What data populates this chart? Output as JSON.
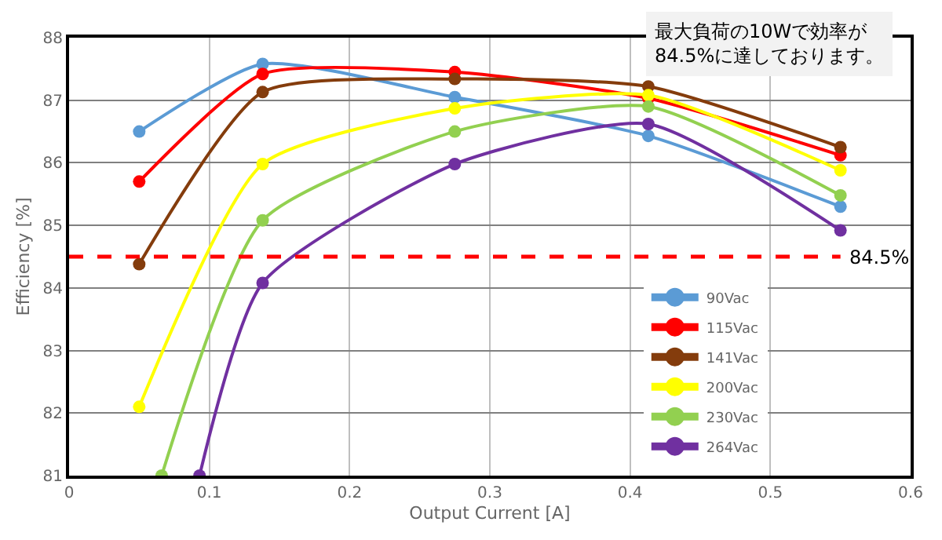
{
  "chart_data": {
    "type": "line",
    "xlabel": "Output Current [A]",
    "ylabel": "Efficiency [%]",
    "x": [
      0.05,
      0.138,
      0.275,
      0.413,
      0.55
    ],
    "series": [
      {
        "name": "90Vac",
        "color": "#5b9bd5",
        "values": [
          86.5,
          87.58,
          87.05,
          86.43,
          85.3
        ]
      },
      {
        "name": "115Vac",
        "color": "#ff0000",
        "values": [
          85.7,
          87.42,
          87.45,
          87.03,
          86.12
        ]
      },
      {
        "name": "141Vac",
        "color": "#843c0c",
        "values": [
          84.38,
          87.13,
          87.34,
          87.22,
          86.25
        ]
      },
      {
        "name": "200Vac",
        "color": "#ffff00",
        "values": [
          82.1,
          85.98,
          86.87,
          87.08,
          85.88
        ]
      },
      {
        "name": "230Vac",
        "color": "#92d050",
        "x": [
          0.066,
          0.138,
          0.275,
          0.413,
          0.55
        ],
        "values": [
          81,
          85.08,
          86.5,
          86.9,
          85.48
        ]
      },
      {
        "name": "264Vac",
        "color": "#7030a0",
        "x": [
          0.093,
          0.138,
          0.275,
          0.413,
          0.55
        ],
        "values": [
          81,
          84.08,
          85.98,
          86.62,
          84.92
        ]
      }
    ],
    "xlim": [
      0,
      0.6
    ],
    "xticks": [
      0,
      0.1,
      0.2,
      0.3,
      0.4,
      0.5,
      0.6
    ],
    "ylim": [
      81,
      88
    ],
    "yticks": [
      81,
      82,
      83,
      84,
      85,
      86,
      87,
      88
    ],
    "ref_lines": [
      {
        "axis": "y",
        "value": 84.5,
        "label": "84.5%",
        "color": "#ff0000",
        "line_style": "dashed"
      }
    ],
    "annotations": [
      "最大負荷の10Wで効率が\n84.5%に達しております。"
    ],
    "grid": true,
    "legend": "bottom right",
    "marker": "circle",
    "line_style": "solid"
  }
}
